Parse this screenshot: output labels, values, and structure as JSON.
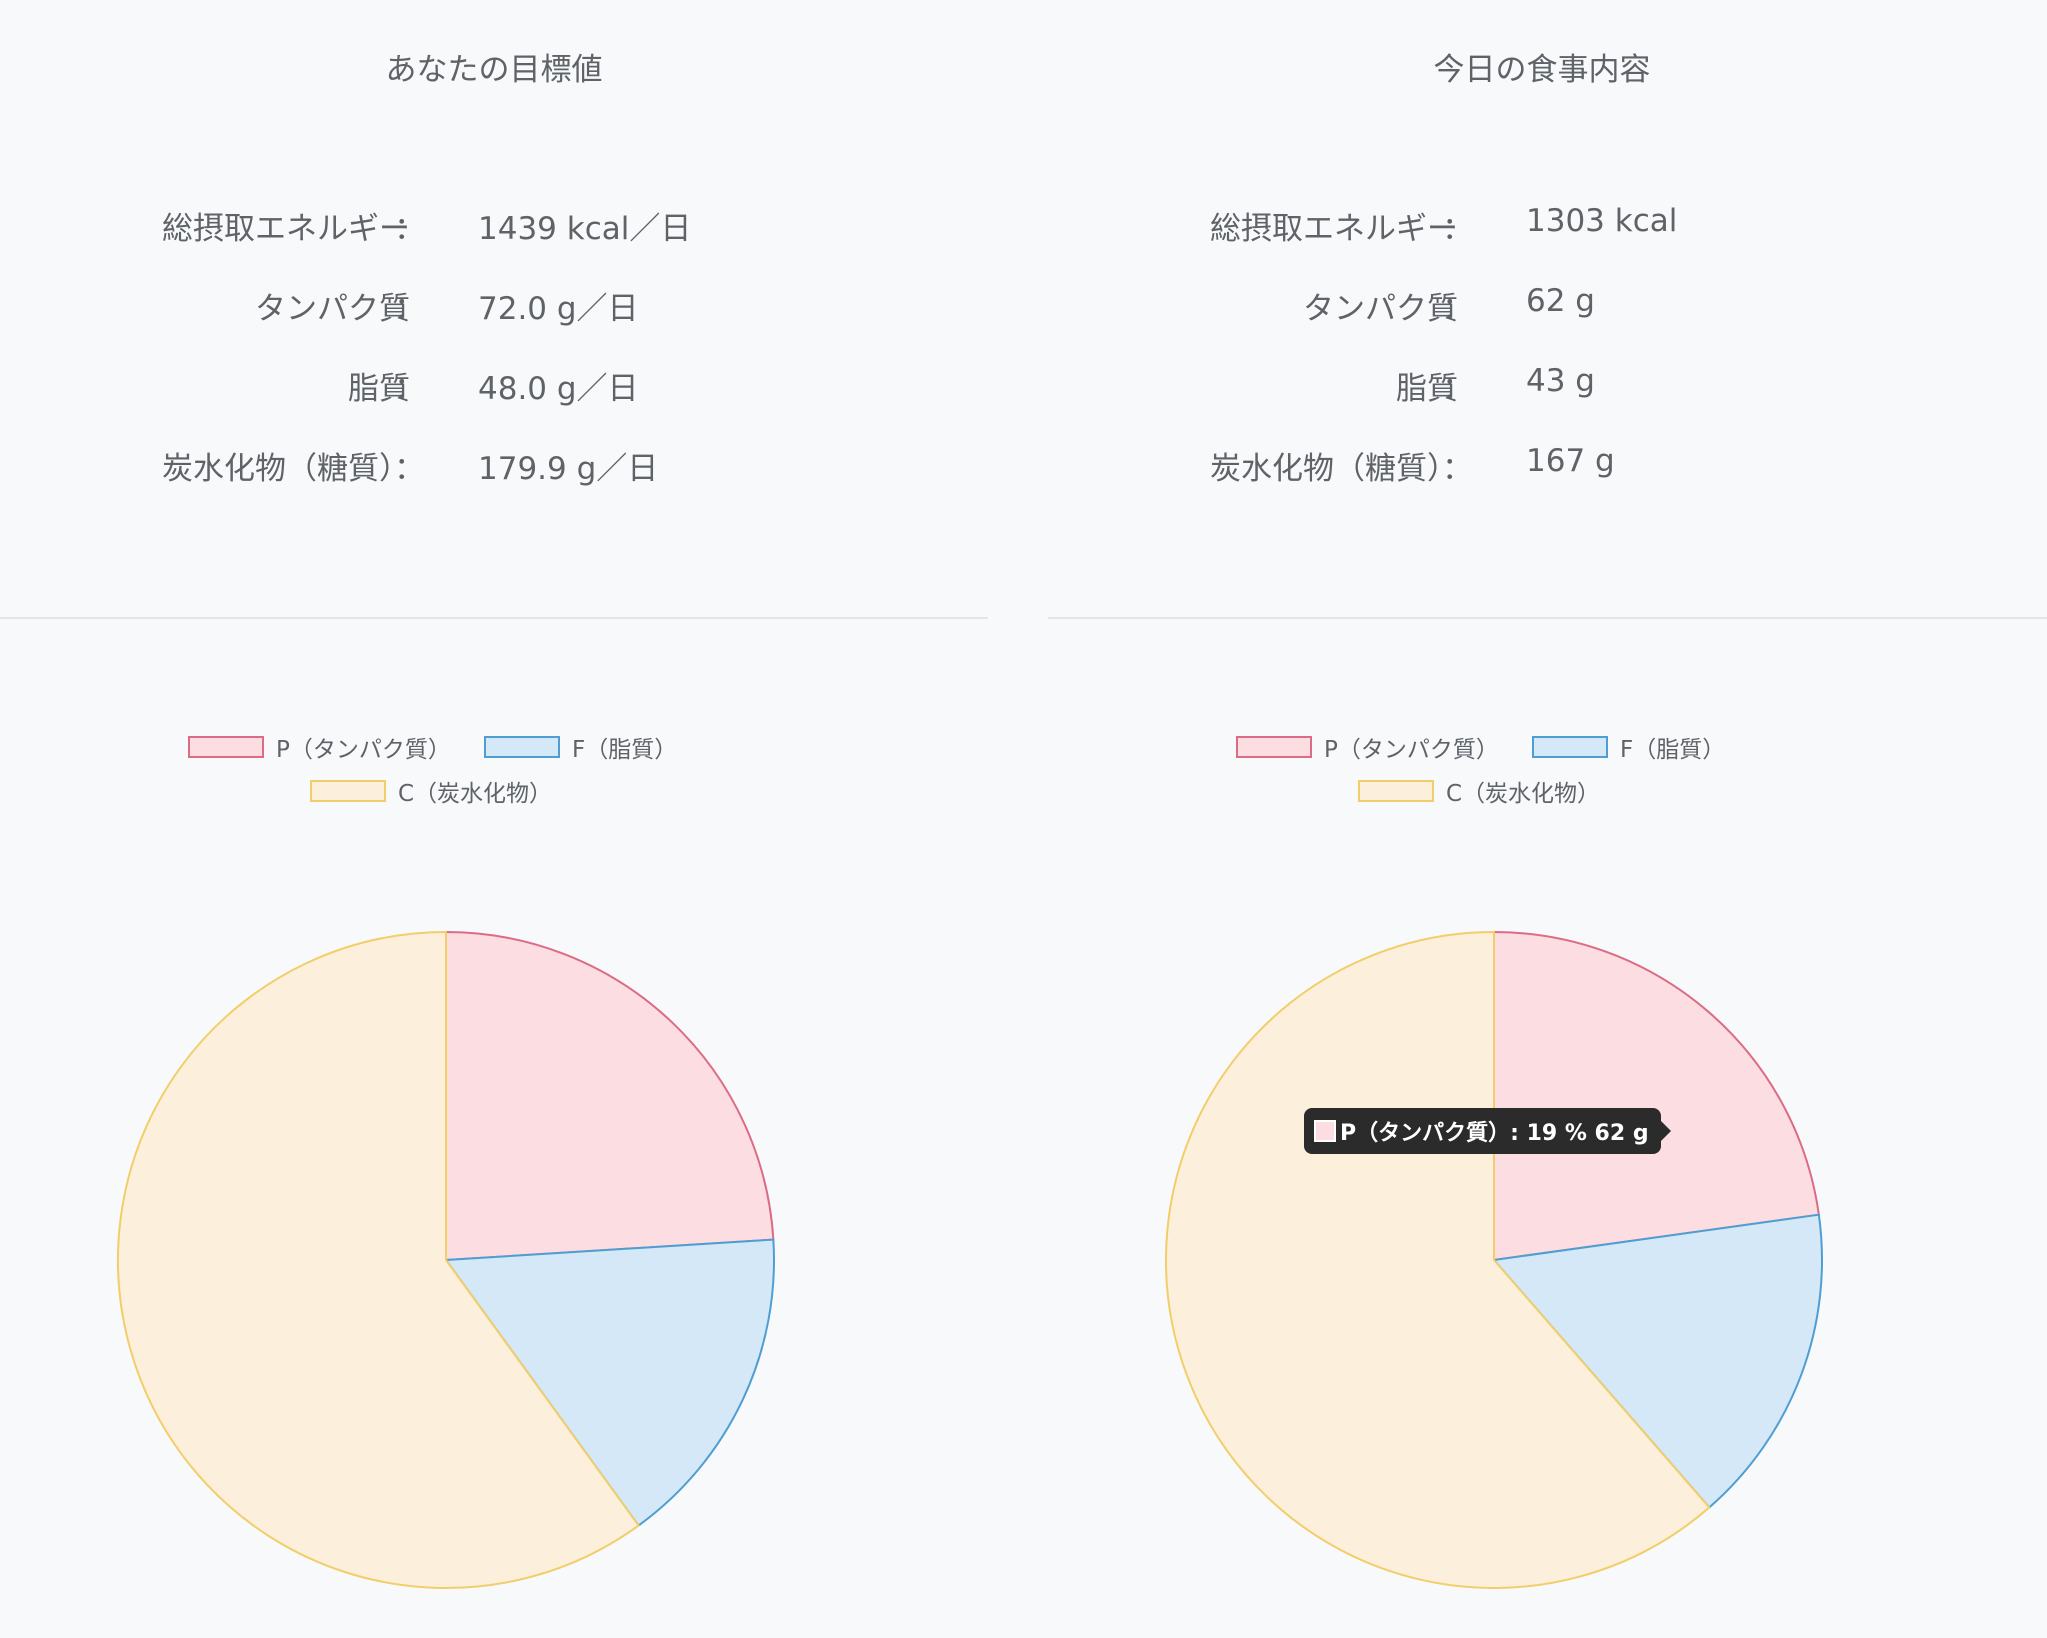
{
  "panels": [
    {
      "title": "あなたの目標値",
      "nutrients": [
        {
          "label": "総摂取エネルギー",
          "value": "1439 kcal／日"
        },
        {
          "label": "タンパク質",
          "value": "72.0 g／日"
        },
        {
          "label": "脂質",
          "value": "48.0 g／日"
        },
        {
          "label": "炭水化物（糖質）",
          "value": "179.9 g／日"
        }
      ]
    },
    {
      "title": "今日の食事内容",
      "nutrients": [
        {
          "label": "総摂取エネルギー",
          "value": "1303 kcal"
        },
        {
          "label": "タンパク質",
          "value": "62 g"
        },
        {
          "label": "脂質",
          "value": "43 g"
        },
        {
          "label": "炭水化物（糖質）",
          "value": "167 g"
        }
      ]
    }
  ],
  "colon": "：",
  "legend": {
    "p": "P（タンパク質）",
    "f": "F（脂質）",
    "c": "C（炭水化物）"
  },
  "colors": {
    "p_fill": "#fcdde2",
    "p_stroke": "#dc6c86",
    "f_fill": "#d4e8f7",
    "f_stroke": "#4f9ed2",
    "c_fill": "#fcf0dc",
    "c_stroke": "#f2ce6a"
  },
  "chart_data": [
    {
      "type": "pie",
      "title": "",
      "categories": [
        "P（タンパク質）",
        "F（脂質）",
        "C（炭水化物）"
      ],
      "values": [
        72.0,
        48.0,
        179.9
      ]
    },
    {
      "type": "pie",
      "title": "",
      "categories": [
        "P（タンパク質）",
        "F（脂質）",
        "C（炭水化物）"
      ],
      "values": [
        62,
        43,
        167
      ],
      "tooltip": {
        "label": "P（タンパク質）",
        "text": "P（タンパク質）: 19 % 62 g"
      }
    }
  ]
}
